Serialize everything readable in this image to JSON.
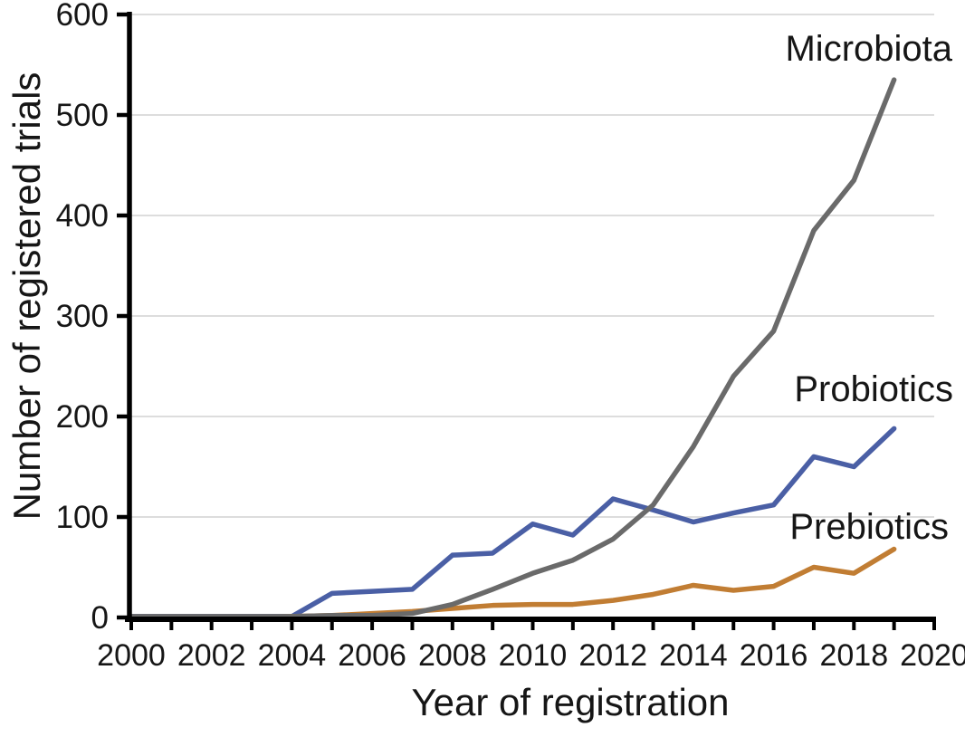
{
  "chart_data": {
    "type": "line",
    "title": "",
    "xlabel": "Year of registration",
    "ylabel": "Number of registered trials",
    "xlim": [
      2000,
      2020
    ],
    "ylim": [
      0,
      600
    ],
    "grid": "horizontal-only",
    "legend_position": "end-of-line-labels",
    "gridline_color": "#d8d8d8",
    "axis_color": "#000000",
    "tick_label_color": "#161616",
    "y_ticks": [
      0,
      100,
      200,
      300,
      400,
      500,
      600
    ],
    "x_tick_years": [
      2000,
      2001,
      2002,
      2003,
      2004,
      2005,
      2006,
      2007,
      2008,
      2009,
      2010,
      2011,
      2012,
      2013,
      2014,
      2015,
      2016,
      2017,
      2018,
      2019,
      2020
    ],
    "x_tick_labels": [
      "2000",
      "2002",
      "2004",
      "2006",
      "2008",
      "2010",
      "2012",
      "2014",
      "2016",
      "2018",
      "2020"
    ],
    "x_tick_label_years": [
      2000,
      2002,
      2004,
      2006,
      2008,
      2010,
      2012,
      2014,
      2016,
      2018,
      2020
    ],
    "x": [
      2000,
      2001,
      2002,
      2003,
      2004,
      2005,
      2006,
      2007,
      2008,
      2009,
      2010,
      2011,
      2012,
      2013,
      2014,
      2015,
      2016,
      2017,
      2018,
      2019
    ],
    "series": [
      {
        "name": "Probiotics",
        "color": "#4a5fa5",
        "values": [
          1,
          1,
          1,
          1,
          1,
          24,
          26,
          28,
          62,
          64,
          93,
          82,
          118,
          107,
          95,
          104,
          112,
          160,
          150,
          188
        ]
      },
      {
        "name": "Prebiotics",
        "color": "#c17d33",
        "values": [
          0,
          0,
          0,
          0,
          1,
          2,
          4,
          6,
          9,
          12,
          13,
          13,
          17,
          23,
          32,
          27,
          31,
          50,
          44,
          68
        ]
      },
      {
        "name": "Microbiota",
        "color": "#6a6a6a",
        "values": [
          1,
          1,
          1,
          1,
          1,
          2,
          2,
          4,
          13,
          28,
          44,
          57,
          78,
          112,
          170,
          240,
          285,
          385,
          435,
          535
        ]
      }
    ]
  }
}
